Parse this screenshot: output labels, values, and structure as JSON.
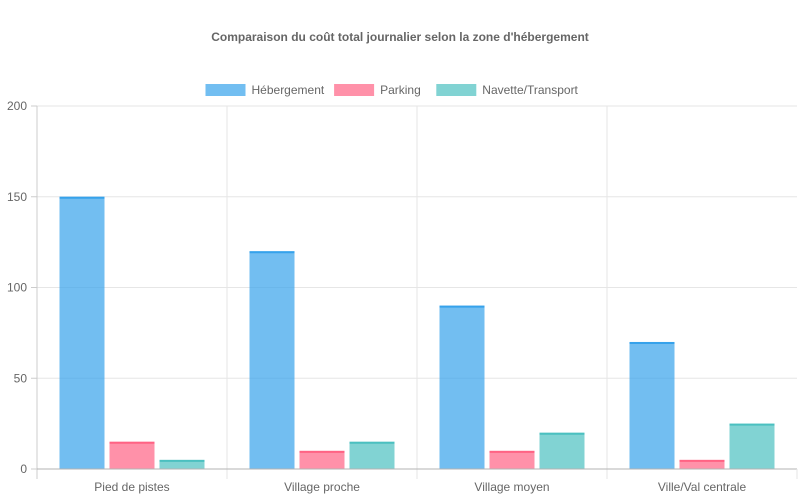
{
  "chart_data": {
    "type": "bar",
    "title": "Comparaison du coût total journalier selon la zone d'hébergement",
    "xlabel": "",
    "ylabel": "",
    "categories": [
      "Pied de pistes",
      "Village proche",
      "Village moyen",
      "Ville/Val centrale"
    ],
    "series": [
      {
        "name": "Hébergement",
        "values": [
          150,
          120,
          90,
          70
        ],
        "color": "#36a2eb"
      },
      {
        "name": "Parking",
        "values": [
          15,
          10,
          10,
          5
        ],
        "color": "#ff6384"
      },
      {
        "name": "Navette/Transport",
        "values": [
          5,
          15,
          20,
          25
        ],
        "color": "#4bc0c0"
      }
    ],
    "ylim": [
      0,
      200
    ],
    "yticks": [
      "0",
      "50",
      "100",
      "150",
      "200"
    ],
    "grid": true,
    "legend_position": "top"
  }
}
